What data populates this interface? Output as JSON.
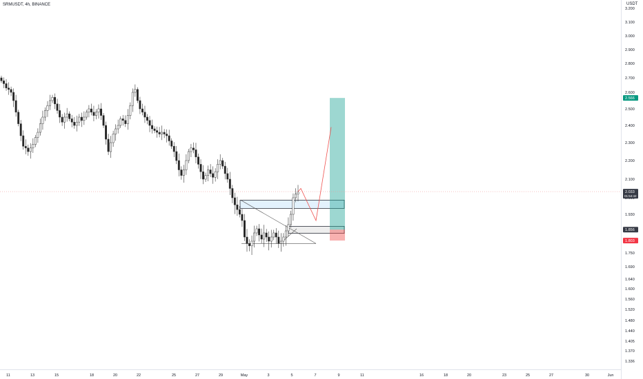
{
  "header": {
    "title": "SRMUSDT, 4h, BINANCE",
    "unit": "USDT"
  },
  "colors": {
    "up": "#26a69a",
    "down": "#222222",
    "target": "#26a69a",
    "stop": "#ef5350",
    "last": "#131722",
    "zone": "#2962ff",
    "path": "#ef5350"
  },
  "chart_data": {
    "type": "candlestick",
    "symbol": "SRMUSDT",
    "interval": "4h",
    "exchange": "BINANCE",
    "y_ticks": [
      "3.200",
      "3.100",
      "3.000",
      "2.900",
      "2.800",
      "2.700",
      "2.600",
      "2.500",
      "2.400",
      "2.300",
      "2.200",
      "2.100",
      "2.000",
      "1.930",
      "1.860",
      "1.800",
      "1.750",
      "1.690",
      "1.640",
      "1.600",
      "1.560",
      "1.520",
      "1.480",
      "1.440",
      "1.405",
      "1.370",
      "1.336"
    ],
    "x_ticks": [
      "11",
      "13",
      "15",
      "18",
      "20",
      "22",
      "25",
      "27",
      "29",
      "May",
      "3",
      "5",
      "7",
      "9",
      "11",
      "16",
      "18",
      "20",
      "23",
      "25",
      "27",
      "30",
      "Jun"
    ],
    "price_labels": [
      {
        "value": "2.566",
        "kind": "target"
      },
      {
        "value": "2.033",
        "sub": "01:54:42",
        "kind": "last"
      },
      {
        "value": "1.856",
        "kind": "entry"
      },
      {
        "value": "1.803",
        "kind": "stop"
      }
    ],
    "position": {
      "type": "long",
      "target": 2.566,
      "entry": 1.856,
      "stop": 1.803
    },
    "zones": [
      {
        "from": 1.955,
        "to": 1.99
      },
      {
        "from": 1.838,
        "to": 1.872
      }
    ],
    "projected_path": [
      2.033,
      2.05,
      1.9,
      2.39
    ],
    "close": [
      2.68,
      2.66,
      2.63,
      2.62,
      2.6,
      2.55,
      2.48,
      2.41,
      2.34,
      2.28,
      2.27,
      2.25,
      2.27,
      2.29,
      2.33,
      2.36,
      2.41,
      2.45,
      2.49,
      2.52,
      2.55,
      2.57,
      2.53,
      2.49,
      2.45,
      2.42,
      2.45,
      2.47,
      2.44,
      2.42,
      2.4,
      2.42,
      2.45,
      2.43,
      2.45,
      2.48,
      2.5,
      2.48,
      2.46,
      2.48,
      2.5,
      2.46,
      2.4,
      2.32,
      2.25,
      2.3,
      2.35,
      2.38,
      2.4,
      2.44,
      2.43,
      2.41,
      2.46,
      2.52,
      2.6,
      2.62,
      2.55,
      2.5,
      2.48,
      2.45,
      2.43,
      2.4,
      2.38,
      2.37,
      2.36,
      2.35,
      2.36,
      2.35,
      2.34,
      2.31,
      2.28,
      2.25,
      2.2,
      2.15,
      2.12,
      2.15,
      2.2,
      2.25,
      2.27,
      2.26,
      2.22,
      2.18,
      2.14,
      2.1,
      2.12,
      2.15,
      2.13,
      2.11,
      2.14,
      2.18,
      2.2,
      2.17,
      2.13,
      2.1,
      2.05,
      2.0,
      1.97,
      1.95,
      1.93,
      1.9,
      1.82,
      1.79,
      1.78,
      1.8,
      1.84,
      1.86,
      1.83,
      1.81,
      1.84,
      1.82,
      1.8,
      1.82,
      1.84,
      1.82,
      1.79,
      1.8,
      1.82,
      1.85,
      1.88,
      1.93,
      2.0,
      2.02,
      2.03
    ]
  }
}
